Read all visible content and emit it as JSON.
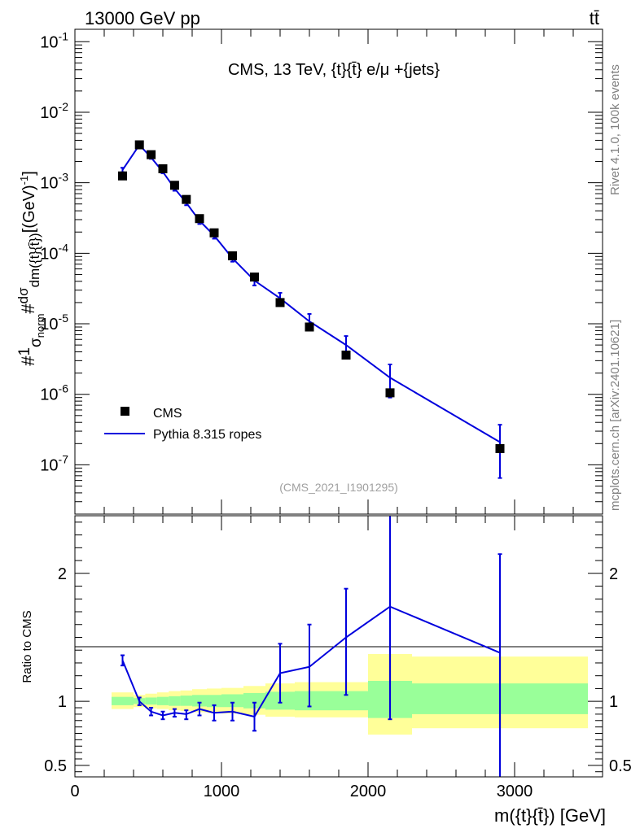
{
  "header": {
    "left": "13000 GeV pp",
    "right": "tt̄"
  },
  "side_labels": {
    "rivet": "Rivet 4.1.0,  100k events",
    "mcplots": "mcplots.cern.ch [arXiv:2401.10621]"
  },
  "colors": {
    "mc_line": "#0000dd",
    "data_marker": "#000000",
    "band_inner": "#99ff99",
    "band_outer": "#ffff99"
  },
  "chart_data": {
    "type": "line",
    "title": "CMS, 13 TeV, {t}{t̄} e/μ +{jets}",
    "analysis_id": "(CMS_2021_I1901295)",
    "xlabel": "m({t}{t̄}) [GeV]",
    "ylabel": "#1/σnorm #dσ/dm({t}{t̄}) [(GeV)^-1]",
    "ylabel_parts": {
      "hash1": "#",
      "one": "1",
      "sigma": "σ",
      "norm": "norm",
      "hash2": "#",
      "dsigma": "dσ",
      "dm": "dm({t}{t̄})",
      "unit": "[(GeV)",
      "exp": "-1",
      "close": "]"
    },
    "xlim": [
      0,
      3600
    ],
    "ylim_log": [
      2e-08,
      0.15
    ],
    "x_ticks": [
      0,
      1000,
      2000,
      3000
    ],
    "x_tick_labels": [
      "0",
      "1000",
      "2000",
      "3000"
    ],
    "y_tick_decades": [
      -7,
      -6,
      -5,
      -4,
      -3,
      -2,
      -1
    ],
    "y_tick_labels": [
      "10",
      "10",
      "10",
      "10",
      "10",
      "10",
      "10"
    ],
    "y_tick_exponents": [
      "-7",
      "-6",
      "-5",
      "-4",
      "-3",
      "-2",
      "-1"
    ],
    "legend": [
      {
        "label": "CMS",
        "kind": "marker"
      },
      {
        "label": "Pythia 8.315 ropes",
        "kind": "line"
      }
    ],
    "bin_edges": [
      250,
      400,
      480,
      560,
      640,
      720,
      800,
      900,
      1000,
      1150,
      1300,
      1500,
      1700,
      2000,
      2300,
      3500
    ],
    "data": {
      "name": "CMS",
      "x": [
        325,
        440,
        520,
        600,
        680,
        760,
        850,
        950,
        1075,
        1225,
        1400,
        1600,
        1850,
        2150,
        2900
      ],
      "y": [
        0.00125,
        0.00345,
        0.0025,
        0.00158,
        0.00092,
        0.00058,
        0.00031,
        0.000195,
        9.2e-05,
        4.6e-05,
        2e-05,
        9e-06,
        3.6e-06,
        1.05e-06,
        1.7e-07
      ]
    },
    "mc": {
      "name": "Pythia 8.315 ropes",
      "x": [
        325,
        440,
        520,
        600,
        680,
        760,
        850,
        950,
        1075,
        1225,
        1400,
        1600,
        1850,
        2150,
        2900
      ],
      "y": [
        0.00152,
        0.00343,
        0.00228,
        0.00143,
        0.00083,
        0.00052,
        0.00029,
        0.000178,
        8.5e-05,
        4.1e-05,
        2.3e-05,
        1.08e-05,
        5e-06,
        1.72e-06,
        2.1e-07
      ],
      "err_up": [
        0.00163,
        0.00355,
        0.00238,
        0.0015,
        0.00089,
        0.00056,
        0.00032,
        0.000195,
        9.5e-05,
        4.9e-05,
        2.75e-05,
        1.38e-05,
        6.7e-06,
        2.65e-06,
        3.7e-07
      ],
      "err_down": [
        0.00141,
        0.00331,
        0.00218,
        0.00136,
        0.00077,
        0.00048,
        0.00026,
        0.000161,
        7.6e-05,
        3.5e-05,
        1.85e-05,
        8.3e-06,
        3.5e-06,
        9e-07,
        6.5e-08
      ]
    },
    "ratio": {
      "ylabel": "Ratio to CMS",
      "ylim": [
        0.41,
        2.45
      ],
      "yticks": [
        0.5,
        1,
        2
      ],
      "ytick_labels": [
        "0.5",
        "1",
        "2"
      ],
      "mc": [
        1.32,
        1.0,
        0.92,
        0.89,
        0.91,
        0.9,
        0.94,
        0.91,
        0.92,
        0.88,
        1.22,
        1.27,
        1.5,
        1.74,
        1.38
      ],
      "mc_up": [
        1.36,
        1.03,
        0.95,
        0.92,
        0.94,
        0.93,
        0.99,
        0.97,
        0.99,
        0.99,
        1.45,
        1.6,
        1.88,
        2.45,
        2.15
      ],
      "mc_down": [
        1.28,
        0.97,
        0.89,
        0.86,
        0.88,
        0.86,
        0.89,
        0.85,
        0.85,
        0.77,
        0.99,
        0.96,
        1.05,
        0.86,
        0.41
      ],
      "band_inner_low": [
        0.97,
        0.98,
        0.975,
        0.97,
        0.965,
        0.965,
        0.96,
        0.955,
        0.955,
        0.945,
        0.935,
        0.93,
        0.93,
        0.87,
        0.9
      ],
      "band_inner_high": [
        1.035,
        1.025,
        1.03,
        1.035,
        1.04,
        1.045,
        1.05,
        1.05,
        1.055,
        1.065,
        1.075,
        1.08,
        1.08,
        1.16,
        1.14
      ],
      "band_outer_low": [
        0.94,
        0.955,
        0.945,
        0.94,
        0.93,
        0.925,
        0.915,
        0.91,
        0.905,
        0.895,
        0.88,
        0.875,
        0.875,
        0.74,
        0.79
      ],
      "band_outer_high": [
        1.07,
        1.05,
        1.06,
        1.07,
        1.08,
        1.085,
        1.095,
        1.1,
        1.105,
        1.12,
        1.14,
        1.15,
        1.15,
        1.37,
        1.35
      ]
    }
  }
}
